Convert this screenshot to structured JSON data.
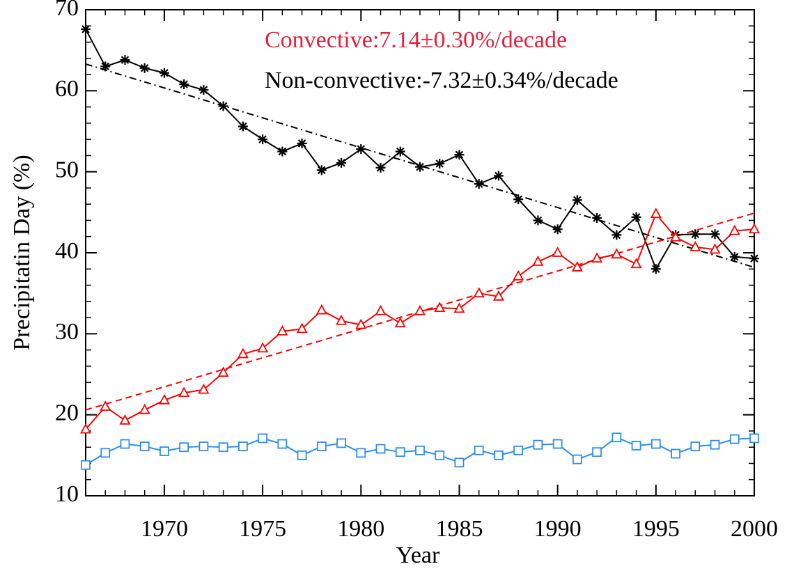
{
  "chart_data": {
    "type": "line",
    "xlabel": "Year",
    "ylabel": "Precipitatin Day (%)",
    "annotations": [
      {
        "text": "Convective:7.14±0.30%/decade",
        "color": "#e8203c"
      },
      {
        "text": "Non-convective:-7.32±0.34%/decade",
        "color": "#000000"
      }
    ],
    "x": [
      1966,
      1967,
      1968,
      1969,
      1970,
      1971,
      1972,
      1973,
      1974,
      1975,
      1976,
      1977,
      1978,
      1979,
      1980,
      1981,
      1982,
      1983,
      1984,
      1985,
      1986,
      1987,
      1988,
      1989,
      1990,
      1991,
      1992,
      1993,
      1994,
      1995,
      1996,
      1997,
      1998,
      1999,
      2000
    ],
    "series": [
      {
        "color": "#000000",
        "marker": "asterisk",
        "values": [
          67.6,
          63.0,
          63.8,
          62.8,
          62.2,
          60.8,
          60.1,
          58.1,
          55.6,
          54.0,
          52.5,
          53.5,
          50.2,
          51.1,
          52.8,
          50.5,
          52.5,
          50.6,
          51.0,
          52.1,
          48.5,
          49.5,
          46.6,
          44.0,
          42.9,
          46.5,
          44.3,
          42.2,
          44.4,
          38.0,
          42.2,
          42.3,
          42.3,
          39.5,
          39.3
        ]
      },
      {
        "color": "#ff0000",
        "marker": "triangle",
        "values": [
          18.2,
          21.0,
          19.3,
          20.6,
          21.8,
          22.7,
          23.1,
          25.2,
          27.5,
          28.2,
          30.3,
          30.6,
          32.9,
          31.6,
          31.1,
          32.8,
          31.3,
          32.8,
          33.2,
          33.1,
          35.0,
          34.6,
          37.1,
          38.9,
          40.0,
          38.2,
          39.3,
          39.8,
          38.6,
          44.8,
          41.9,
          40.7,
          40.4,
          42.7,
          42.9
        ]
      },
      {
        "color": "#2b8ef0",
        "marker": "square",
        "values": [
          13.8,
          15.3,
          16.4,
          16.1,
          15.5,
          16.0,
          16.1,
          16.0,
          16.1,
          17.1,
          16.4,
          15.0,
          16.1,
          16.5,
          15.3,
          15.8,
          15.4,
          15.6,
          15.0,
          14.1,
          15.6,
          15.0,
          15.6,
          16.3,
          16.4,
          14.5,
          15.4,
          17.2,
          16.2,
          16.4,
          15.2,
          16.1,
          16.3,
          17.0,
          17.1
        ]
      }
    ],
    "trend_lines": [
      {
        "color": "#000000",
        "dash": "dashdot",
        "x": [
          1966,
          2000
        ],
        "values": [
          63.3,
          38.2
        ]
      },
      {
        "color": "#ff0000",
        "dash": "dash",
        "x": [
          1966,
          2000
        ],
        "values": [
          20.6,
          44.9
        ]
      }
    ],
    "xlim": [
      1966,
      2000
    ],
    "xticks": [
      1970,
      1975,
      1980,
      1985,
      1990,
      1995,
      2000
    ],
    "x_minor_step": 1,
    "ylim": [
      10,
      70
    ],
    "yticks": [
      10,
      20,
      30,
      40,
      50,
      60,
      70
    ],
    "y_minor_step": 2
  }
}
